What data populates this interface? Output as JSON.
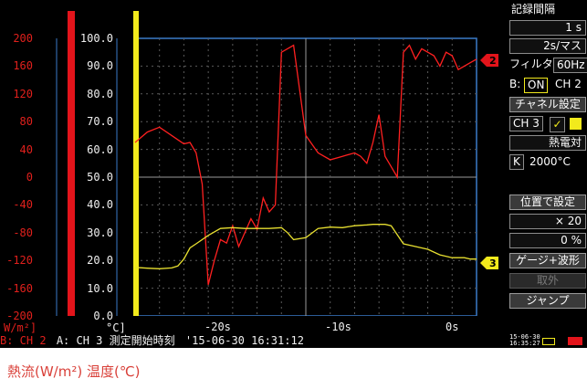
{
  "y_axis_heat": {
    "ticks": [
      "200",
      "160",
      "120",
      "80",
      "40",
      "0",
      "-40",
      "-80",
      "-120",
      "-160",
      "-200"
    ],
    "unit": "W/m²]",
    "color": "#e0201c"
  },
  "y_axis_temp": {
    "ticks": [
      "100.0",
      "90.0",
      "80.0",
      "70.0",
      "60.0",
      "50.0",
      "40.0",
      "30.0",
      "20.0",
      "10.0",
      "0.0"
    ],
    "unit": "°C]",
    "color": "#f0f0f0"
  },
  "x_axis": {
    "ticks": [
      "-20s",
      "-10s",
      "0s"
    ]
  },
  "markers": {
    "ch2": "2",
    "ch3": "3"
  },
  "infobar": {
    "b_channel": "B: CH 2",
    "a_channel": "A: CH 3",
    "start_label": "測定開始時刻",
    "start_time": "'15-06-30 16:31:12"
  },
  "panel": {
    "recording_interval_label": "記録間隔",
    "recording_interval_value": "1 s",
    "time_div_value": "2s/マス",
    "filter_label": "フィルタ",
    "filter_value": "60Hz",
    "b_label": "B:",
    "b_toggle": "ON",
    "b_channel": "CH 2",
    "channel_settings": "チャネル設定",
    "ch3_label": "CH 3",
    "thermocouple_label": "熱電対",
    "thermo_k": "K",
    "thermo_range": "2000°C",
    "position_setting": "位置で設定",
    "zoom_value": "× 20",
    "offset_value": "0 %",
    "gauge_wave": "ゲージ+波形",
    "remove": "取外",
    "jump": "ジャンプ"
  },
  "status": {
    "date": "15-06-30",
    "time": "16:35:27"
  },
  "caption": "熱流(W/m²)  温度(℃)",
  "chart_data": {
    "type": "line",
    "x_unit": "s",
    "xlim": [
      -27,
      1
    ],
    "series": [
      {
        "axis": "left (W/m²)",
        "color": "#ff2020",
        "x": [
          -27,
          -26,
          -25,
          -24,
          -23,
          -22.5,
          -22,
          -21.5,
          -21,
          -20.5,
          -20,
          -19.5,
          -19,
          -18.5,
          -18,
          -17.5,
          -17,
          -16.5,
          -16,
          -15.5,
          -15,
          -14,
          -13,
          -12,
          -11,
          -10,
          -9,
          -8.5,
          -8,
          -7.5,
          -7,
          -6.5,
          -6,
          -5.5,
          -5,
          -4.5,
          -4,
          -3.5,
          -3,
          -2.5,
          -2,
          -1.5,
          -1,
          -0.5,
          0,
          0.5,
          1
        ],
        "y": [
          50,
          65,
          72,
          60,
          48,
          50,
          35,
          -10,
          -155,
          -120,
          -90,
          -95,
          -70,
          -100,
          -80,
          -60,
          -75,
          -30,
          -50,
          -40,
          180,
          190,
          60,
          35,
          25,
          30,
          35,
          30,
          20,
          50,
          90,
          30,
          15,
          0,
          180,
          190,
          170,
          185,
          180,
          175,
          160,
          180,
          175,
          155,
          160,
          165,
          170
        ]
      },
      {
        "axis": "right (°C)",
        "color": "#e8e030",
        "x": [
          -27,
          -26,
          -25,
          -24,
          -23.5,
          -23,
          -22.5,
          -22,
          -21,
          -20,
          -19,
          -18,
          -17,
          -16,
          -15,
          -14.5,
          -14,
          -13,
          -12,
          -11,
          -10,
          -9,
          -8,
          -7.5,
          -7,
          -6.5,
          -6,
          -5,
          -4,
          -3,
          -2,
          -1,
          0,
          0.5,
          1
        ],
        "y": [
          17.5,
          17.2,
          17.0,
          17.3,
          18.0,
          20.5,
          24.5,
          26.0,
          29.0,
          31.5,
          31.8,
          31.5,
          31.5,
          31.5,
          31.8,
          30.0,
          27.5,
          28.2,
          31.5,
          32.0,
          31.8,
          32.5,
          32.8,
          33.0,
          33.0,
          33.0,
          32.5,
          26.0,
          25.0,
          24.0,
          22.0,
          21.0,
          21.0,
          20.5,
          20.5
        ]
      }
    ]
  }
}
